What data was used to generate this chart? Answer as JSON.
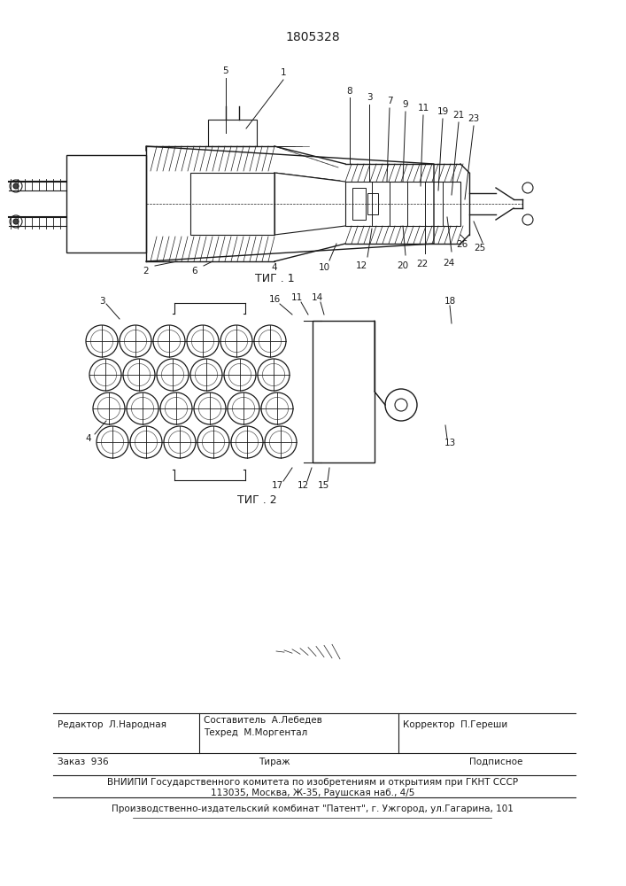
{
  "patent_number": "1805328",
  "fig1_caption": "ΤИГ . 1",
  "fig2_caption": "ΤИГ . 2",
  "background_color": "#f5f5f0",
  "line_color": "#1a1a1a",
  "hatch_color": "#1a1a1a",
  "footer": {
    "editor": "Редактор  Л.Народная",
    "compiler": "Составитель  А.Лебедев",
    "techred": "Техред  М.Моргентал",
    "corrector": "Корректор  П.Гереши",
    "order": "Заказ  936",
    "tirazh": "Тираж",
    "podpisnoe": "Подписное",
    "vniip1": "ВНИИПИ Государственного комитета по изобретениям и открытиям при ГКНТ СССР",
    "vniip2": "113035, Москва, Ж-35, Раушская наб., 4/5",
    "producer": "Производственно-издательский комбинат \"Патент\", г. Ужгород, ул.Гагарина, 101"
  }
}
